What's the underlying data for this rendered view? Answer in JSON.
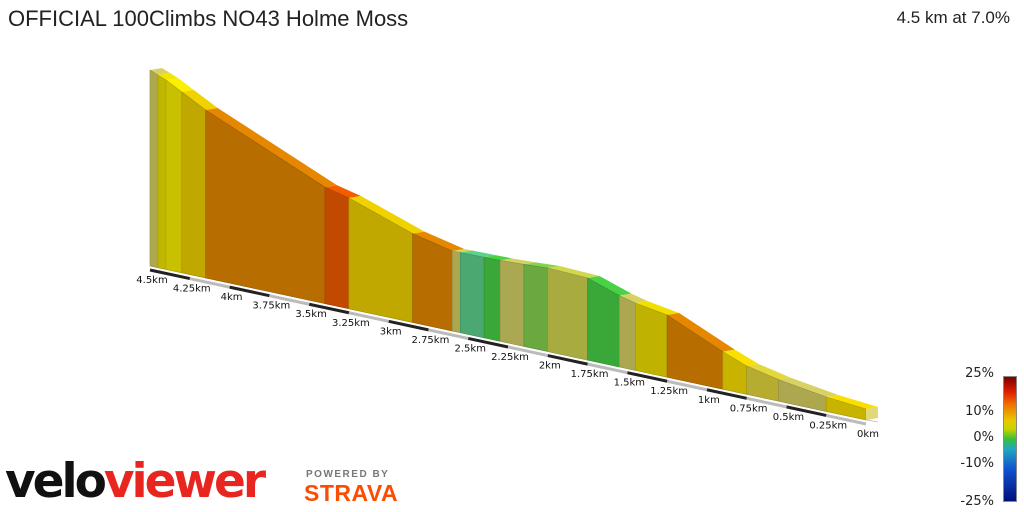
{
  "header": {
    "title": "OFFICIAL 100Climbs NO43 Holme Moss",
    "summary": "4.5 km at 7.0%"
  },
  "legend": {
    "labels": [
      "25%",
      "10%",
      "0%",
      "-10%",
      "-25%"
    ]
  },
  "branding": {
    "logo_part1": "velo",
    "logo_part2": "viewer",
    "powered_by": "POWERED BY",
    "strava": "STRAVA"
  },
  "colors": {
    "steep": "#c24a00",
    "moderate": "#b76d00",
    "easy_yellow": "#c8b300",
    "olive": "#ada850",
    "green": "#3aa838",
    "teal": "#4aa870"
  },
  "chart_data": {
    "type": "area",
    "xlabel": "",
    "ylabel": "",
    "distance_labels": [
      "0km",
      "0.25km",
      "0.5km",
      "0.75km",
      "1km",
      "1.25km",
      "1.5km",
      "1.75km",
      "2km",
      "2.25km",
      "2.5km",
      "2.75km",
      "3km",
      "3.25km",
      "3.5km",
      "3.75km",
      "4km",
      "4.25km",
      "4.5km"
    ],
    "segments": [
      {
        "start_km": 0.0,
        "end_km": 0.25,
        "color": "#c8b300"
      },
      {
        "start_km": 0.25,
        "end_km": 0.55,
        "color": "#ada850"
      },
      {
        "start_km": 0.55,
        "end_km": 0.75,
        "color": "#b5ac30"
      },
      {
        "start_km": 0.75,
        "end_km": 0.9,
        "color": "#c8b300"
      },
      {
        "start_km": 0.9,
        "end_km": 1.25,
        "color": "#b76d00"
      },
      {
        "start_km": 1.25,
        "end_km": 1.45,
        "color": "#c0b200"
      },
      {
        "start_km": 1.45,
        "end_km": 1.55,
        "color": "#ada850"
      },
      {
        "start_km": 1.55,
        "end_km": 1.75,
        "color": "#3aa838"
      },
      {
        "start_km": 1.75,
        "end_km": 2.0,
        "color": "#a8ac40"
      },
      {
        "start_km": 2.0,
        "end_km": 2.15,
        "color": "#6aa840"
      },
      {
        "start_km": 2.15,
        "end_km": 2.3,
        "color": "#aaa850"
      },
      {
        "start_km": 2.3,
        "end_km": 2.4,
        "color": "#3aa838"
      },
      {
        "start_km": 2.4,
        "end_km": 2.55,
        "color": "#4aa870"
      },
      {
        "start_km": 2.55,
        "end_km": 2.6,
        "color": "#ada850"
      },
      {
        "start_km": 2.6,
        "end_km": 2.85,
        "color": "#b76d00"
      },
      {
        "start_km": 2.85,
        "end_km": 3.25,
        "color": "#c0a800"
      },
      {
        "start_km": 3.25,
        "end_km": 3.4,
        "color": "#c24a00"
      },
      {
        "start_km": 3.4,
        "end_km": 4.15,
        "color": "#b76d00"
      },
      {
        "start_km": 4.15,
        "end_km": 4.3,
        "color": "#c0a800"
      },
      {
        "start_km": 4.3,
        "end_km": 4.4,
        "color": "#c8c000"
      },
      {
        "start_km": 4.4,
        "end_km": 4.45,
        "color": "#c0b800"
      },
      {
        "start_km": 4.45,
        "end_km": 4.5,
        "color": "#ada850"
      }
    ]
  }
}
